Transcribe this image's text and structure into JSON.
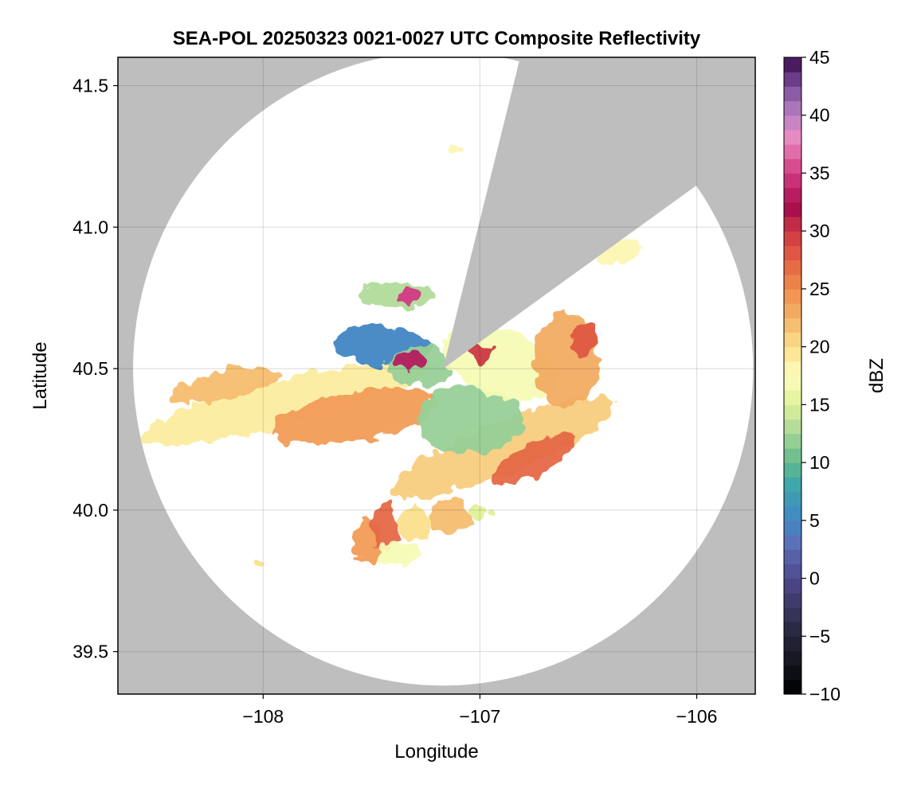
{
  "chart_data": {
    "type": "heatmap",
    "title": "SEA-POL 20250323 0021-0027 UTC Composite Reflectivity",
    "xlabel": "Longitude",
    "ylabel": "Latitude",
    "xlim": [
      -108.67,
      -105.73
    ],
    "ylim": [
      39.35,
      41.6
    ],
    "x_ticks": [
      -108,
      -107,
      -106
    ],
    "x_tick_labels": [
      "−108",
      "−107",
      "−106"
    ],
    "y_ticks": [
      39.5,
      40.0,
      40.5,
      41.0,
      41.5
    ],
    "y_tick_labels": [
      "39.5",
      "40.0",
      "40.5",
      "41.0",
      "41.5"
    ],
    "grid": true,
    "background_color": "#bebebe",
    "coverage_color": "#ffffff",
    "radar_site": {
      "lon": -107.17,
      "lat": 40.5
    },
    "range_disk": {
      "center_lon": -107.17,
      "center_lat": 40.5,
      "radius_deg_lat": 1.12,
      "radius_deg_lon": 1.43
    },
    "blocked_sector": [
      {
        "lon": -106.84,
        "lat": 41.52
      },
      {
        "lon": -106.05,
        "lat": 41.12
      }
    ],
    "colorbar": {
      "label": "dBZ",
      "min": -10,
      "max": 45,
      "ticks": [
        45,
        40,
        35,
        30,
        25,
        20,
        15,
        10,
        5,
        0,
        -5,
        -10
      ],
      "tick_labels": [
        "45",
        "40",
        "35",
        "30",
        "25",
        "20",
        "15",
        "10",
        "5",
        "0",
        "−5",
        "−10"
      ],
      "levels": 44,
      "colormap": [
        {
          "v": -10,
          "c": "#000000"
        },
        {
          "v": -5,
          "c": "#26253a"
        },
        {
          "v": 0,
          "c": "#4e4a8c"
        },
        {
          "v": 3,
          "c": "#5d6fb6"
        },
        {
          "v": 5,
          "c": "#4287c4"
        },
        {
          "v": 8,
          "c": "#3ea6ad"
        },
        {
          "v": 10,
          "c": "#62b98b"
        },
        {
          "v": 12.5,
          "c": "#a5d69a"
        },
        {
          "v": 15,
          "c": "#e0f199"
        },
        {
          "v": 17.5,
          "c": "#fdfdbd"
        },
        {
          "v": 20,
          "c": "#fbe08c"
        },
        {
          "v": 22.5,
          "c": "#f3b468"
        },
        {
          "v": 25,
          "c": "#f08c4c"
        },
        {
          "v": 28,
          "c": "#e05843"
        },
        {
          "v": 30,
          "c": "#cc3845"
        },
        {
          "v": 32,
          "c": "#a50d4c"
        },
        {
          "v": 35,
          "c": "#d23b84"
        },
        {
          "v": 38,
          "c": "#ea8cc2"
        },
        {
          "v": 40,
          "c": "#b982c2"
        },
        {
          "v": 42.5,
          "c": "#7b4e9c"
        },
        {
          "v": 45,
          "c": "#3b0a4b"
        }
      ]
    },
    "echo_regions": [
      {
        "lon": -107.9,
        "lat": 40.38,
        "rx": 0.68,
        "ry": 0.08,
        "rot": -14,
        "dbz": 19
      },
      {
        "lon": -107.58,
        "lat": 40.33,
        "rx": 0.38,
        "ry": 0.09,
        "rot": -10,
        "dbz": 24
      },
      {
        "lon": -108.18,
        "lat": 40.44,
        "rx": 0.26,
        "ry": 0.05,
        "rot": -12,
        "dbz": 22
      },
      {
        "lon": -106.9,
        "lat": 40.22,
        "rx": 0.55,
        "ry": 0.09,
        "rot": -22,
        "dbz": 21
      },
      {
        "lon": -106.75,
        "lat": 40.18,
        "rx": 0.22,
        "ry": 0.05,
        "rot": -28,
        "dbz": 27
      },
      {
        "lon": -107.05,
        "lat": 40.32,
        "rx": 0.25,
        "ry": 0.12,
        "rot": 0,
        "dbz": 12
      },
      {
        "lon": -107.45,
        "lat": 40.58,
        "rx": 0.22,
        "ry": 0.07,
        "rot": 5,
        "dbz": 5
      },
      {
        "lon": -107.28,
        "lat": 40.51,
        "rx": 0.16,
        "ry": 0.07,
        "rot": 0,
        "dbz": 12
      },
      {
        "lon": -106.9,
        "lat": 40.52,
        "rx": 0.28,
        "ry": 0.12,
        "rot": 20,
        "dbz": 17
      },
      {
        "lon": -106.6,
        "lat": 40.53,
        "rx": 0.15,
        "ry": 0.17,
        "rot": 0,
        "dbz": 23
      },
      {
        "lon": -107.38,
        "lat": 40.76,
        "rx": 0.16,
        "ry": 0.05,
        "rot": 0,
        "dbz": 13
      },
      {
        "lon": -107.32,
        "lat": 40.76,
        "rx": 0.05,
        "ry": 0.03,
        "rot": 0,
        "dbz": 35
      },
      {
        "lon": -106.35,
        "lat": 40.91,
        "rx": 0.1,
        "ry": 0.04,
        "rot": -20,
        "dbz": 18
      },
      {
        "lon": -107.52,
        "lat": 39.89,
        "rx": 0.06,
        "ry": 0.08,
        "rot": 0,
        "dbz": 24
      },
      {
        "lon": -107.44,
        "lat": 39.94,
        "rx": 0.06,
        "ry": 0.09,
        "rot": 0,
        "dbz": 27
      },
      {
        "lon": -107.3,
        "lat": 39.95,
        "rx": 0.08,
        "ry": 0.06,
        "rot": 0,
        "dbz": 20
      },
      {
        "lon": -107.14,
        "lat": 39.98,
        "rx": 0.09,
        "ry": 0.06,
        "rot": 0,
        "dbz": 22
      },
      {
        "lon": -107.38,
        "lat": 39.85,
        "rx": 0.1,
        "ry": 0.04,
        "rot": 0,
        "dbz": 17
      },
      {
        "lon": -107.0,
        "lat": 39.99,
        "rx": 0.05,
        "ry": 0.03,
        "rot": 0,
        "dbz": 15
      },
      {
        "lon": -108.02,
        "lat": 39.81,
        "rx": 0.015,
        "ry": 0.015,
        "rot": 0,
        "dbz": 20
      },
      {
        "lon": -107.12,
        "lat": 41.28,
        "rx": 0.03,
        "ry": 0.012,
        "rot": 0,
        "dbz": 18
      },
      {
        "lon": -107.33,
        "lat": 40.53,
        "rx": 0.08,
        "ry": 0.035,
        "rot": 0,
        "dbz": 33
      },
      {
        "lon": -107.0,
        "lat": 40.56,
        "rx": 0.05,
        "ry": 0.03,
        "rot": 0,
        "dbz": 30
      },
      {
        "lon": -106.52,
        "lat": 40.6,
        "rx": 0.06,
        "ry": 0.06,
        "rot": 0,
        "dbz": 28
      }
    ]
  }
}
